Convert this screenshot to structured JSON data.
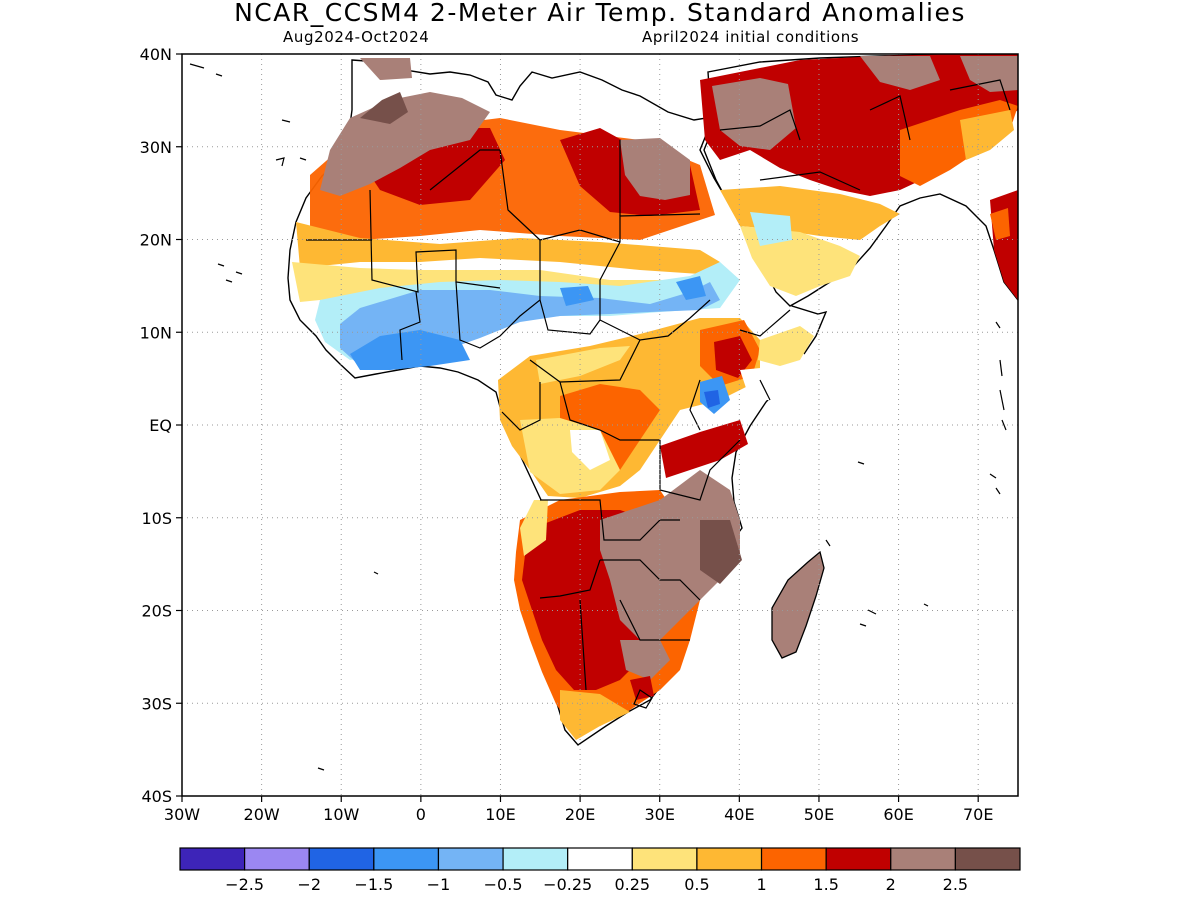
{
  "title": "NCAR_CCSM4 2-Meter Air Temp. Standard Anomalies",
  "subtitle_left": "Aug2024-Oct2024",
  "subtitle_right": "April2024 initial conditions",
  "map": {
    "lon_range": [
      -30,
      75
    ],
    "lat_range": [
      -40,
      40
    ],
    "grid": "dotted",
    "lat_labels": [
      "40N",
      "30N",
      "20N",
      "10N",
      "EQ",
      "10S",
      "20S",
      "30S",
      "40S"
    ],
    "lon_labels": [
      "30W",
      "20W",
      "10W",
      "0",
      "10E",
      "20E",
      "30E",
      "40E",
      "50E",
      "60E",
      "70E"
    ]
  },
  "colorbar": {
    "colors": [
      "#3d24b8",
      "#9b87f2",
      "#2064e4",
      "#3c96f4",
      "#74b4f5",
      "#b3eef8",
      "#ffffff",
      "#fee37a",
      "#feb833",
      "#fc6400",
      "#c00000",
      "#a98078",
      "#76504a"
    ],
    "labels": [
      "-2.5",
      "-2",
      "-1.5",
      "-1",
      "-0.5",
      "-0.25",
      "0.25",
      "0.5",
      "1",
      "1.5",
      "2",
      "2.5"
    ]
  }
}
